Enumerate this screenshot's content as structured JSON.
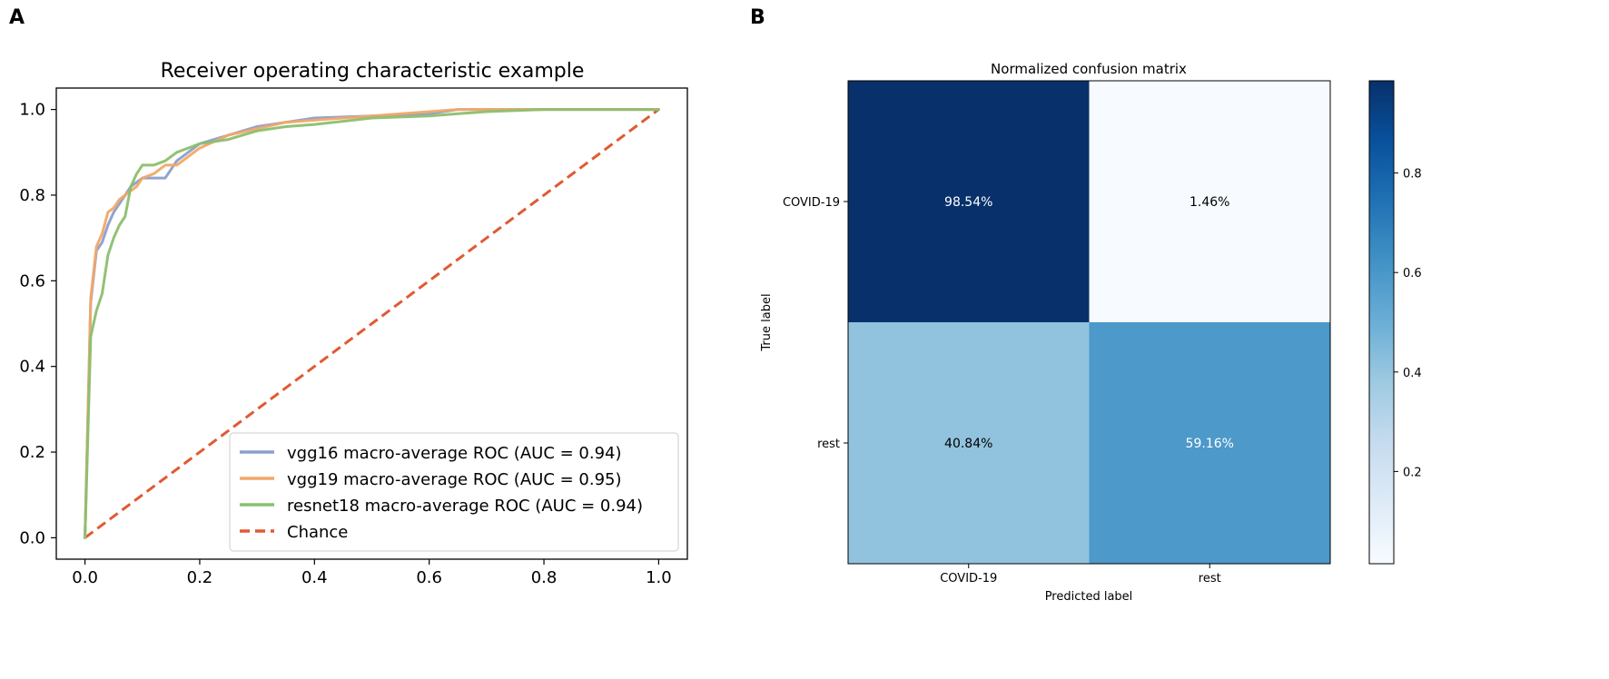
{
  "panels": {
    "a": "A",
    "b": "B"
  },
  "chart_data": [
    {
      "type": "line",
      "title": "Receiver operating characteristic example",
      "xlabel": "",
      "ylabel": "",
      "xlim": [
        -0.05,
        1.05
      ],
      "ylim": [
        -0.05,
        1.05
      ],
      "xticks": [
        0.0,
        0.2,
        0.4,
        0.6,
        0.8,
        1.0
      ],
      "yticks": [
        0.0,
        0.2,
        0.4,
        0.6,
        0.8,
        1.0
      ],
      "xtick_labels": [
        "0.0",
        "0.2",
        "0.4",
        "0.6",
        "0.8",
        "1.0"
      ],
      "ytick_labels": [
        "0.0",
        "0.2",
        "0.4",
        "0.6",
        "0.8",
        "1.0"
      ],
      "legend_position": "bottom-right",
      "series": [
        {
          "name": "vgg16 macro-average ROC (AUC = 0.94)",
          "color": "#8c9fca",
          "dashed": false,
          "x": [
            0,
            0.01,
            0.02,
            0.03,
            0.04,
            0.05,
            0.06,
            0.07,
            0.08,
            0.09,
            0.1,
            0.12,
            0.14,
            0.16,
            0.18,
            0.2,
            0.25,
            0.3,
            0.35,
            0.4,
            0.5,
            0.6,
            0.65,
            0.7,
            0.8,
            1.0
          ],
          "y": [
            0,
            0.55,
            0.67,
            0.69,
            0.73,
            0.76,
            0.78,
            0.8,
            0.82,
            0.83,
            0.84,
            0.84,
            0.84,
            0.88,
            0.9,
            0.92,
            0.94,
            0.96,
            0.97,
            0.98,
            0.985,
            0.99,
            1.0,
            1.0,
            1.0,
            1.0
          ]
        },
        {
          "name": "vgg19 macro-average ROC (AUC = 0.95)",
          "color": "#f2a868",
          "dashed": false,
          "x": [
            0,
            0.01,
            0.02,
            0.03,
            0.04,
            0.05,
            0.06,
            0.07,
            0.08,
            0.09,
            0.1,
            0.12,
            0.14,
            0.16,
            0.18,
            0.2,
            0.25,
            0.3,
            0.35,
            0.4,
            0.5,
            0.6,
            0.65,
            0.7,
            0.8,
            1.0
          ],
          "y": [
            0,
            0.56,
            0.68,
            0.71,
            0.76,
            0.77,
            0.79,
            0.8,
            0.81,
            0.82,
            0.84,
            0.85,
            0.87,
            0.87,
            0.89,
            0.91,
            0.94,
            0.955,
            0.97,
            0.975,
            0.985,
            0.995,
            1.0,
            1.0,
            1.0,
            1.0
          ]
        },
        {
          "name": "resnet18 macro-average ROC (AUC = 0.94)",
          "color": "#8bbf6e",
          "dashed": false,
          "x": [
            0,
            0.01,
            0.02,
            0.03,
            0.04,
            0.05,
            0.06,
            0.07,
            0.08,
            0.09,
            0.1,
            0.12,
            0.14,
            0.16,
            0.18,
            0.2,
            0.25,
            0.3,
            0.35,
            0.4,
            0.5,
            0.6,
            0.65,
            0.7,
            0.8,
            1.0
          ],
          "y": [
            0,
            0.47,
            0.53,
            0.57,
            0.66,
            0.7,
            0.73,
            0.75,
            0.82,
            0.85,
            0.87,
            0.87,
            0.88,
            0.9,
            0.91,
            0.92,
            0.93,
            0.95,
            0.96,
            0.965,
            0.98,
            0.985,
            0.99,
            0.995,
            1.0,
            1.0
          ]
        },
        {
          "name": "Chance",
          "color": "#e05a33",
          "dashed": true,
          "x": [
            0,
            1
          ],
          "y": [
            0,
            1
          ]
        }
      ]
    },
    {
      "type": "heatmap",
      "title": "Normalized confusion matrix",
      "xlabel": "Predicted label",
      "ylabel": "True label",
      "rows": [
        "COVID-19",
        "rest"
      ],
      "cols": [
        "COVID-19",
        "rest"
      ],
      "values": [
        [
          0.9854,
          0.0146
        ],
        [
          0.4084,
          0.5916
        ]
      ],
      "labels": [
        [
          "98.54%",
          "1.46%"
        ],
        [
          "40.84%",
          "59.16%"
        ]
      ],
      "colormap": "Blues",
      "vmin": 0.0146,
      "vmax": 0.9854,
      "colorbar_ticks": [
        0.2,
        0.4,
        0.6,
        0.8
      ],
      "colorbar_tick_labels": [
        "0.2",
        "0.4",
        "0.6",
        "0.8"
      ]
    }
  ]
}
